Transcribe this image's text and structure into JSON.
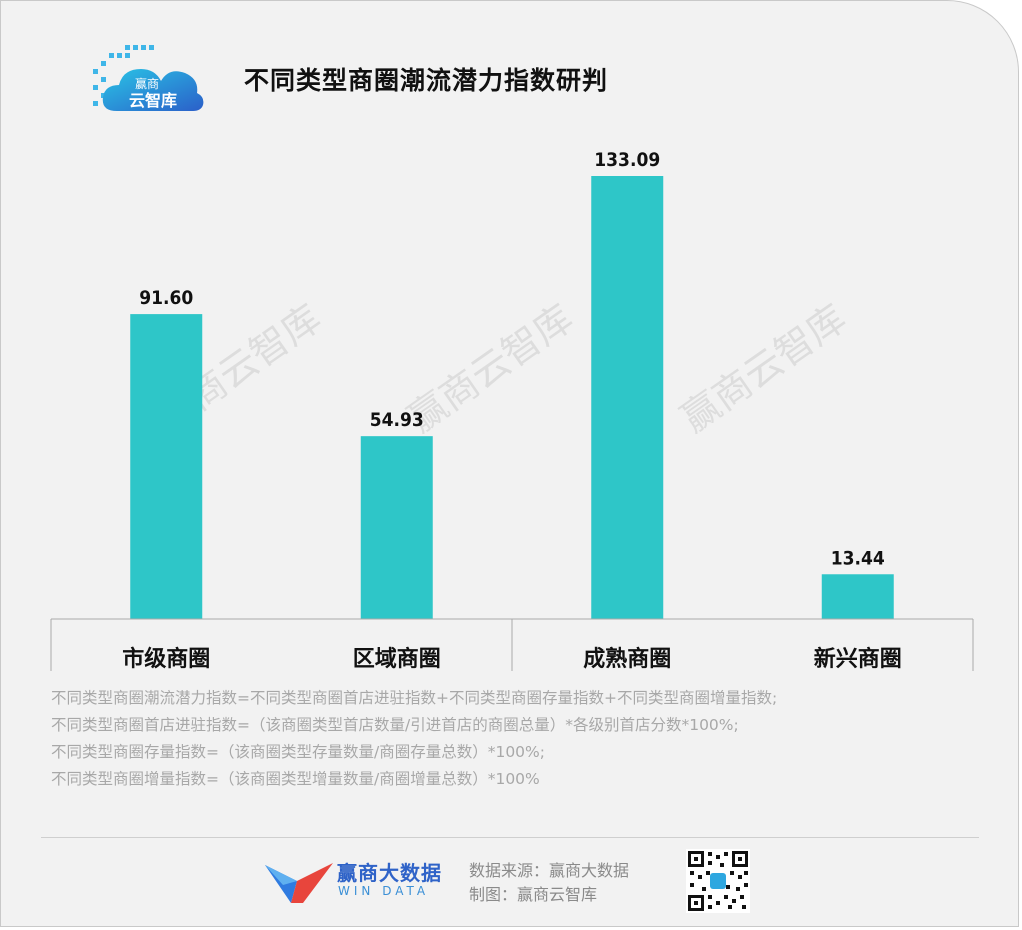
{
  "header": {
    "title": "不同类型商圈潮流潜力指数研判",
    "logo_text_top": "赢商",
    "logo_text_bottom": "云智库"
  },
  "watermark": "赢商云智库",
  "chart_data": {
    "type": "bar",
    "categories": [
      "市级商圈",
      "区域商圈",
      "成熟商圈",
      "新兴商圈"
    ],
    "values": [
      91.6,
      54.93,
      133.09,
      13.44
    ],
    "value_labels": [
      "91.60",
      "54.93",
      "133.09",
      "13.44"
    ],
    "title": "不同类型商圈潮流潜力指数研判",
    "xlabel": "",
    "ylabel": "",
    "ylim": [
      0,
      133.09
    ],
    "bar_color": "#2ec6c8",
    "grid": false,
    "legend": "none"
  },
  "notes": [
    "不同类型商圈潮流潜力指数=不同类型商圈首店进驻指数+不同类型商圈存量指数+不同类型商圈增量指数;",
    "不同类型商圈首店进驻指数=（该商圈类型首店数量/引进首店的商圈总量）*各级别首店分数*100%;",
    "不同类型商圈存量指数=（该商圈类型存量数量/商圈存量总数）*100%;",
    "不同类型商圈增量指数=（该商圈类型增量数量/商圈增量总数）*100%"
  ],
  "footer": {
    "brand_name": "赢商大数据",
    "brand_sub": "WIN DATA",
    "source_line": "数据来源：赢商大数据",
    "maker_line": "制图：赢商云智库",
    "qr_icon": "qr-code-icon"
  },
  "colors": {
    "bar": "#2ec6c8",
    "background": "#f2f2f2",
    "brand_blue": "#2f63c8",
    "brand_red": "#e8453c"
  }
}
